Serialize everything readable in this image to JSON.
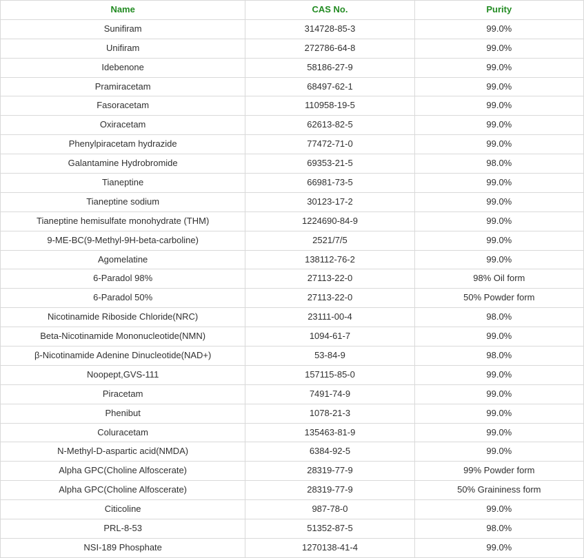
{
  "table": {
    "header_color": "#228b22",
    "text_color": "#303030",
    "border_color": "#d9d9d9",
    "background_color": "#ffffff",
    "font_size_pt": 10,
    "columns": [
      {
        "label": "Name",
        "width_pct": 42,
        "align": "center"
      },
      {
        "label": "CAS No.",
        "width_pct": 29,
        "align": "center"
      },
      {
        "label": "Purity",
        "width_pct": 29,
        "align": "center"
      }
    ],
    "rows": [
      [
        "Sunifiram",
        "314728-85-3",
        "99.0%"
      ],
      [
        "Unifiram",
        "272786-64-8",
        "99.0%"
      ],
      [
        "Idebenone",
        "58186-27-9",
        "99.0%"
      ],
      [
        "Pramiracetam",
        "68497-62-1",
        "99.0%"
      ],
      [
        "Fasoracetam",
        "110958-19-5",
        "99.0%"
      ],
      [
        "Oxiracetam",
        "62613-82-5",
        "99.0%"
      ],
      [
        "Phenylpiracetam hydrazide",
        "77472-71-0",
        "99.0%"
      ],
      [
        "Galantamine Hydrobromide",
        "69353-21-5",
        "98.0%"
      ],
      [
        "Tianeptine",
        "66981-73-5",
        "99.0%"
      ],
      [
        "Tianeptine sodium",
        "30123-17-2",
        "99.0%"
      ],
      [
        "Tianeptine hemisulfate monohydrate (THM)",
        "1224690-84-9",
        "99.0%"
      ],
      [
        "9-ME-BC(9-Methyl-9H-beta-carboline)",
        "2521/7/5",
        "99.0%"
      ],
      [
        "Agomelatine",
        "138112-76-2",
        "99.0%"
      ],
      [
        "6-Paradol 98%",
        "27113-22-0",
        "98% Oil form"
      ],
      [
        "6-Paradol 50%",
        "27113-22-0",
        "50% Powder form"
      ],
      [
        "Nicotinamide Riboside Chloride(NRC)",
        "23111-00-4",
        "98.0%"
      ],
      [
        "Beta-Nicotinamide Mononucleotide(NMN)",
        "1094-61-7",
        "99.0%"
      ],
      [
        "β-Nicotinamide Adenine Dinucleotide(NAD+)",
        "53-84-9",
        "98.0%"
      ],
      [
        "Noopept,GVS-111",
        "157115-85-0",
        "99.0%"
      ],
      [
        "Piracetam",
        "7491-74-9",
        "99.0%"
      ],
      [
        "Phenibut",
        "1078-21-3",
        "99.0%"
      ],
      [
        "Coluracetam",
        "135463-81-9",
        "99.0%"
      ],
      [
        "N-Methyl-D-aspartic acid(NMDA)",
        "6384-92-5",
        "99.0%"
      ],
      [
        "Alpha GPC(Choline Alfoscerate)",
        "28319-77-9",
        "99% Powder form"
      ],
      [
        "Alpha GPC(Choline Alfoscerate)",
        "28319-77-9",
        "50% Graininess form"
      ],
      [
        "Citicoline",
        "987-78-0",
        "99.0%"
      ],
      [
        "PRL-8-53",
        "51352-87-5",
        "98.0%"
      ],
      [
        "NSI-189 Phosphate",
        "1270138-41-4",
        "99.0%"
      ]
    ]
  }
}
